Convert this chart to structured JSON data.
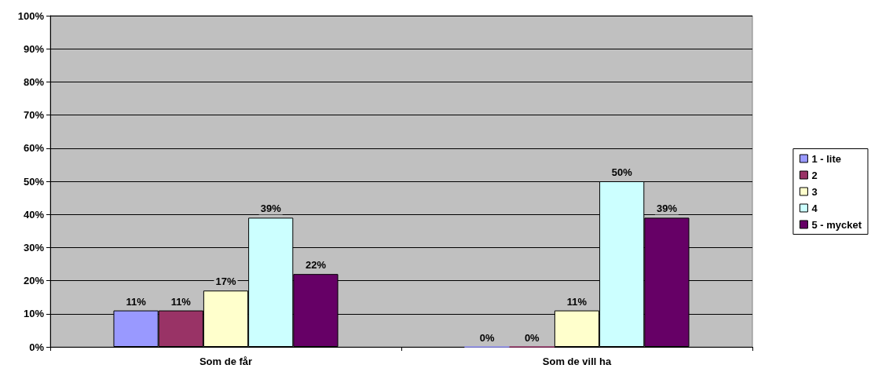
{
  "chart_data": {
    "type": "bar",
    "categories": [
      "Som de får",
      "Som de vill ha"
    ],
    "series": [
      {
        "name": "1 - lite",
        "color": "#9999ff",
        "values": [
          11,
          0
        ],
        "value_labels": [
          "11%",
          "0%"
        ]
      },
      {
        "name": "2",
        "color": "#993366",
        "values": [
          11,
          0
        ],
        "value_labels": [
          "11%",
          "0%"
        ]
      },
      {
        "name": "3",
        "color": "#ffffcc",
        "values": [
          17,
          11
        ],
        "value_labels": [
          "17%",
          "11%"
        ]
      },
      {
        "name": "4",
        "color": "#ccffff",
        "values": [
          39,
          50
        ],
        "value_labels": [
          "39%",
          "50%"
        ]
      },
      {
        "name": "5 - mycket",
        "color": "#660066",
        "values": [
          22,
          39
        ],
        "value_labels": [
          "22%",
          "39%"
        ]
      }
    ],
    "ylim": [
      0,
      100
    ],
    "yticks": [
      {
        "value": 0,
        "label": "0%"
      },
      {
        "value": 10,
        "label": "10%"
      },
      {
        "value": 20,
        "label": "20%"
      },
      {
        "value": 30,
        "label": "30%"
      },
      {
        "value": 40,
        "label": "40%"
      },
      {
        "value": 50,
        "label": "50%"
      },
      {
        "value": 60,
        "label": "60%"
      },
      {
        "value": 70,
        "label": "70%"
      },
      {
        "value": 80,
        "label": "80%"
      },
      {
        "value": 90,
        "label": "90%"
      },
      {
        "value": 100,
        "label": "100%"
      }
    ],
    "grid": "y",
    "legend": "right"
  }
}
